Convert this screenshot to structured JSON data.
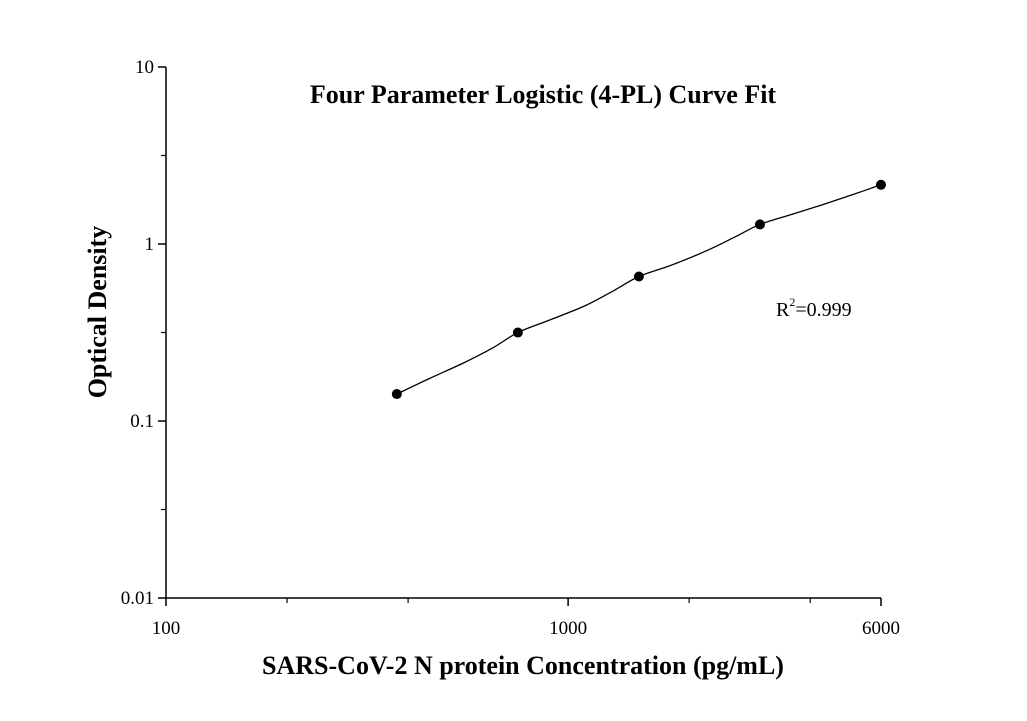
{
  "chart_data": {
    "type": "scatter",
    "title": "Four Parameter Logistic (4-PL) Curve Fit",
    "xlabel": "SARS-CoV-2 N protein Concentration (pg/mL)",
    "ylabel": "Optical Density",
    "xscale": "log",
    "yscale": "log",
    "xlim": [
      100,
      6000
    ],
    "ylim": [
      0.01,
      10
    ],
    "x_ticks": [
      100,
      1000,
      6000
    ],
    "x_tick_labels": [
      "100",
      "1000",
      "6000"
    ],
    "y_ticks": [
      0.01,
      0.1,
      1,
      10
    ],
    "y_tick_labels": [
      "0.01",
      "0.1",
      "1",
      "10"
    ],
    "grid": false,
    "series": [
      {
        "x": [
          375,
          750,
          1500,
          3000,
          6000
        ],
        "y": [
          0.142,
          0.316,
          0.655,
          1.29,
          2.16
        ],
        "marker": "filled-circle",
        "color": "#000000"
      }
    ],
    "fit_curve": {
      "model": "4-PL",
      "color": "#000000",
      "x": [
        375,
        450,
        550,
        650,
        750,
        900,
        1100,
        1300,
        1500,
        1800,
        2200,
        2600,
        3000,
        3600,
        4300,
        5100,
        6000
      ],
      "y": [
        0.142,
        0.173,
        0.213,
        0.259,
        0.316,
        0.372,
        0.447,
        0.546,
        0.655,
        0.757,
        0.912,
        1.096,
        1.29,
        1.47,
        1.67,
        1.9,
        2.16
      ]
    },
    "annotation": {
      "text_base": "R",
      "text_sup": "2",
      "text_rest": "=0.999"
    }
  }
}
